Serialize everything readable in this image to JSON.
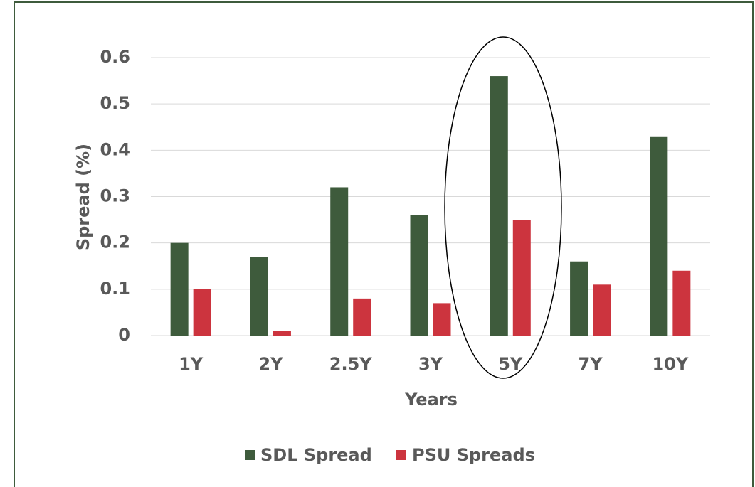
{
  "chart_data": {
    "type": "bar",
    "categories": [
      "1Y",
      "2Y",
      "2.5Y",
      "3Y",
      "5Y",
      "7Y",
      "10Y"
    ],
    "series": [
      {
        "name": "SDL Spread",
        "color": "#3e5b3c",
        "values": [
          0.2,
          0.17,
          0.32,
          0.26,
          0.56,
          0.16,
          0.43
        ]
      },
      {
        "name": "PSU Spreads",
        "color": "#cc343e",
        "values": [
          0.1,
          0.01,
          0.08,
          0.07,
          0.25,
          0.11,
          0.14
        ]
      }
    ],
    "xlabel": "Years",
    "ylabel": "Spread (%)",
    "ylim": [
      0,
      0.6
    ],
    "yticks": [
      0,
      0.1,
      0.2,
      0.3,
      0.4,
      0.5,
      0.6
    ],
    "grid": true,
    "legend": "bottom"
  }
}
